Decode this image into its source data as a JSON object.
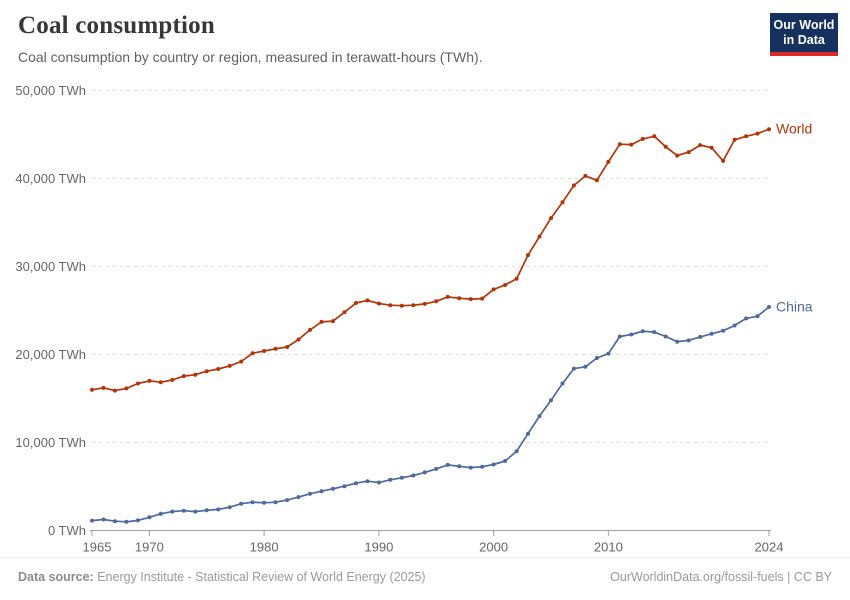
{
  "header": {
    "title": "Coal consumption",
    "subtitle": "Coal consumption by country or region, measured in terawatt-hours (TWh).",
    "logo": {
      "line1": "Our World",
      "line2": "in Data",
      "bg_color": "#15325e",
      "bar_color": "#dc2a2a"
    }
  },
  "chart_data": {
    "type": "line",
    "title": "Coal consumption",
    "xlabel": "",
    "ylabel": "TWh",
    "xlim": [
      1965,
      2024
    ],
    "ylim": [
      0,
      50000
    ],
    "grid": "horizontal-dashed",
    "legend_position": "end-of-line-labels",
    "x_ticks": [
      1965,
      1970,
      1980,
      1990,
      2000,
      2010,
      2024
    ],
    "y_ticks": [
      {
        "value": 0,
        "label": "0 TWh"
      },
      {
        "value": 10000,
        "label": "10,000 TWh"
      },
      {
        "value": 20000,
        "label": "20,000 TWh"
      },
      {
        "value": 30000,
        "label": "30,000 TWh"
      },
      {
        "value": 40000,
        "label": "40,000 TWh"
      },
      {
        "value": 50000,
        "label": "50,000 TWh"
      }
    ],
    "years": [
      1965,
      1966,
      1967,
      1968,
      1969,
      1970,
      1971,
      1972,
      1973,
      1974,
      1975,
      1976,
      1977,
      1978,
      1979,
      1980,
      1981,
      1982,
      1983,
      1984,
      1985,
      1986,
      1987,
      1988,
      1989,
      1990,
      1991,
      1992,
      1993,
      1994,
      1995,
      1996,
      1997,
      1998,
      1999,
      2000,
      2001,
      2002,
      2003,
      2004,
      2005,
      2006,
      2007,
      2008,
      2009,
      2010,
      2011,
      2012,
      2013,
      2014,
      2015,
      2016,
      2017,
      2018,
      2019,
      2020,
      2021,
      2022,
      2023,
      2024
    ],
    "series": [
      {
        "name": "World",
        "color": "#b13507",
        "values": [
          16000,
          16200,
          15900,
          16150,
          16700,
          17000,
          16850,
          17100,
          17550,
          17700,
          18100,
          18350,
          18700,
          19200,
          20150,
          20400,
          20650,
          20850,
          21700,
          22800,
          23700,
          23800,
          24800,
          25850,
          26150,
          25800,
          25600,
          25550,
          25600,
          25750,
          26050,
          26550,
          26400,
          26300,
          26350,
          27400,
          27900,
          28600,
          31300,
          33400,
          35500,
          37300,
          39200,
          40300,
          39800,
          41900,
          43900,
          43850,
          44500,
          44800,
          43600,
          42600,
          43000,
          43800,
          43500,
          42000,
          44400,
          44800,
          45100,
          45600
        ]
      },
      {
        "name": "China",
        "color": "#4c6a9c",
        "values": [
          1130,
          1250,
          1060,
          990,
          1150,
          1500,
          1900,
          2150,
          2250,
          2150,
          2300,
          2400,
          2650,
          3050,
          3220,
          3150,
          3220,
          3450,
          3790,
          4170,
          4470,
          4740,
          5030,
          5380,
          5600,
          5450,
          5760,
          5990,
          6250,
          6600,
          7000,
          7450,
          7300,
          7150,
          7250,
          7500,
          7900,
          9000,
          11000,
          13000,
          14800,
          16700,
          18400,
          18600,
          19600,
          20100,
          22050,
          22270,
          22650,
          22550,
          22050,
          21450,
          21600,
          22000,
          22350,
          22700,
          23300,
          24100,
          24350,
          25400
        ]
      }
    ],
    "axis_color": "#9e9e9e",
    "grid_color": "#dcdcdc",
    "tick_label_color": "#666666"
  },
  "footer": {
    "source_label": "Data source:",
    "source_text": " Energy Institute - Statistical Review of World Energy (2025)",
    "right_text": "OurWorldinData.org/fossil-fuels | CC BY"
  }
}
